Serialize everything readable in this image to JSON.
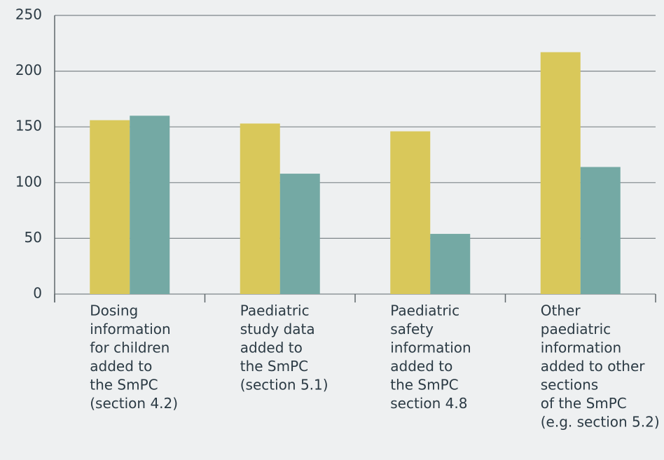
{
  "chart_data": {
    "type": "bar",
    "categories": [
      [
        "Dosing",
        "information",
        "for children",
        "added to",
        "the SmPC",
        "(section 4.2)"
      ],
      [
        "Paediatric",
        "study data",
        "added to",
        "the SmPC",
        "(section 5.1)"
      ],
      [
        "Paediatric",
        "safety",
        "information",
        "added to",
        "the SmPC",
        "section 4.8"
      ],
      [
        "Other",
        "paediatric",
        "information",
        "added to other",
        "sections",
        "of the SmPC",
        "(e.g. section 5.2)"
      ]
    ],
    "series": [
      {
        "color": "#d9c85a",
        "values": [
          156,
          153,
          146,
          217
        ]
      },
      {
        "color": "#74a9a4",
        "values": [
          160,
          108,
          54,
          114
        ]
      }
    ],
    "ylim": [
      0,
      250
    ],
    "yticks": [
      0,
      50,
      100,
      150,
      200,
      250
    ],
    "grid": true
  }
}
